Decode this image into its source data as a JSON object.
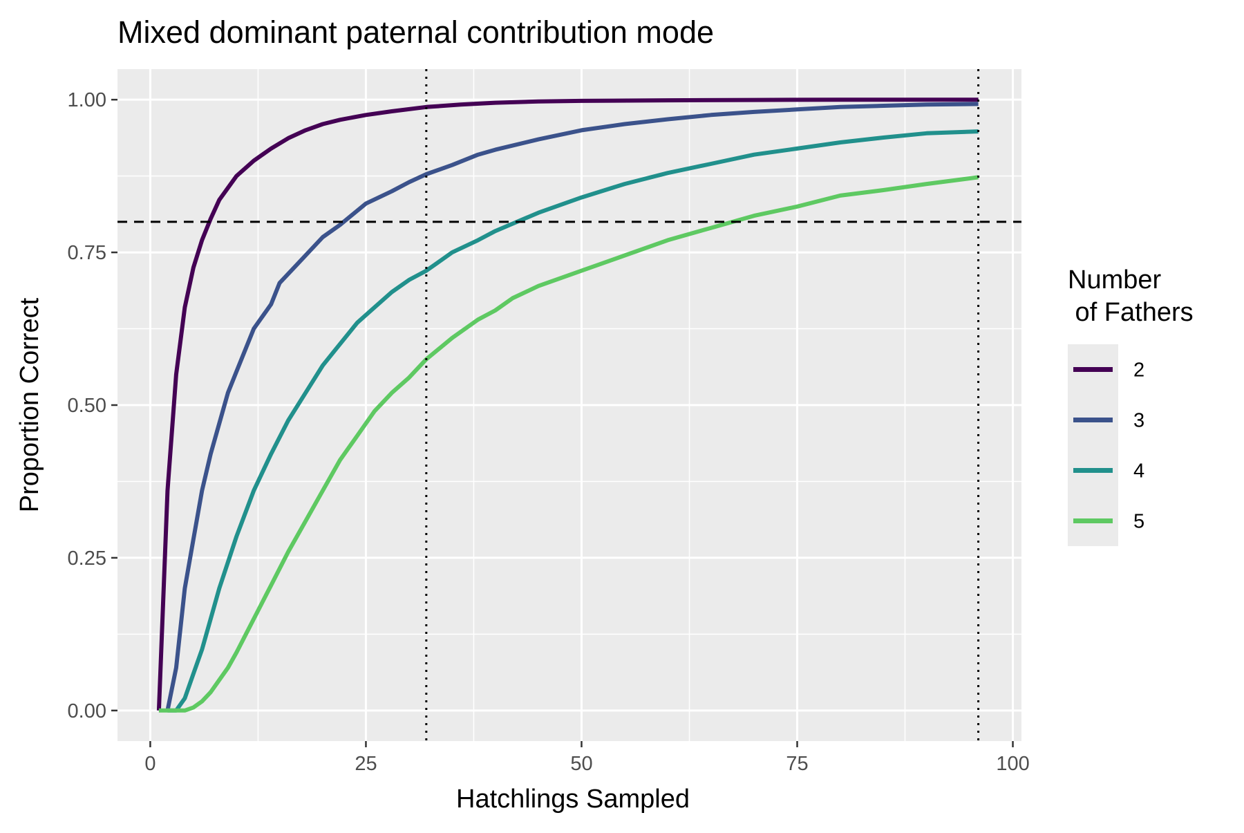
{
  "chart_data": {
    "type": "line",
    "title": "Mixed dominant paternal contribution mode",
    "xlabel": "Hatchlings Sampled",
    "ylabel": "Proportion Correct",
    "xlim": [
      -3.8,
      101
    ],
    "ylim": [
      -0.05,
      1.05
    ],
    "x_ticks": [
      0,
      25,
      50,
      75,
      100
    ],
    "x_tick_labels": [
      "0",
      "25",
      "50",
      "75",
      "100"
    ],
    "y_ticks": [
      0,
      0.25,
      0.5,
      0.75,
      1
    ],
    "y_tick_labels": [
      "0.00",
      "0.25",
      "0.50",
      "0.75",
      "1.00"
    ],
    "grid": true,
    "background": "#ebebeb",
    "legend": {
      "title_lines": [
        "Number",
        " of Fathers"
      ],
      "position": "right"
    },
    "reference_lines": [
      {
        "orientation": "horizontal",
        "value": 0.8,
        "style": "dashed",
        "color": "#000000"
      },
      {
        "orientation": "vertical",
        "value": 32,
        "style": "dotted",
        "color": "#000000"
      },
      {
        "orientation": "vertical",
        "value": 96,
        "style": "dotted",
        "color": "#000000"
      }
    ],
    "series": [
      {
        "name": "2",
        "color": "#440154",
        "points": [
          [
            1,
            0
          ],
          [
            2,
            0.36
          ],
          [
            3,
            0.55
          ],
          [
            4,
            0.66
          ],
          [
            5,
            0.725
          ],
          [
            6,
            0.77
          ],
          [
            7,
            0.805
          ],
          [
            8,
            0.836
          ],
          [
            10,
            0.875
          ],
          [
            12,
            0.9
          ],
          [
            14,
            0.92
          ],
          [
            16,
            0.937
          ],
          [
            18,
            0.95
          ],
          [
            20,
            0.96
          ],
          [
            22,
            0.967
          ],
          [
            25,
            0.975
          ],
          [
            28,
            0.981
          ],
          [
            32,
            0.988
          ],
          [
            36,
            0.992
          ],
          [
            40,
            0.995
          ],
          [
            45,
            0.997
          ],
          [
            50,
            0.998
          ],
          [
            60,
            0.999
          ],
          [
            70,
            0.9995
          ],
          [
            80,
            1.0
          ],
          [
            96,
            1.0
          ]
        ]
      },
      {
        "name": "3",
        "color": "#3b528b",
        "points": [
          [
            2,
            0
          ],
          [
            3,
            0.07
          ],
          [
            4,
            0.2
          ],
          [
            5,
            0.28
          ],
          [
            6,
            0.36
          ],
          [
            7,
            0.42
          ],
          [
            8,
            0.47
          ],
          [
            9,
            0.52
          ],
          [
            10,
            0.555
          ],
          [
            12,
            0.625
          ],
          [
            14,
            0.665
          ],
          [
            15,
            0.7
          ],
          [
            17,
            0.73
          ],
          [
            20,
            0.775
          ],
          [
            22,
            0.795
          ],
          [
            25,
            0.83
          ],
          [
            28,
            0.85
          ],
          [
            30,
            0.865
          ],
          [
            32,
            0.878
          ],
          [
            35,
            0.893
          ],
          [
            38,
            0.91
          ],
          [
            40,
            0.918
          ],
          [
            45,
            0.935
          ],
          [
            50,
            0.95
          ],
          [
            55,
            0.96
          ],
          [
            60,
            0.968
          ],
          [
            65,
            0.975
          ],
          [
            70,
            0.98
          ],
          [
            75,
            0.984
          ],
          [
            80,
            0.988
          ],
          [
            85,
            0.99
          ],
          [
            90,
            0.992
          ],
          [
            96,
            0.993
          ]
        ]
      },
      {
        "name": "4",
        "color": "#21908c",
        "points": [
          [
            2,
            0
          ],
          [
            3,
            0
          ],
          [
            4,
            0.02
          ],
          [
            5,
            0.06
          ],
          [
            6,
            0.1
          ],
          [
            7,
            0.15
          ],
          [
            8,
            0.2
          ],
          [
            10,
            0.285
          ],
          [
            12,
            0.36
          ],
          [
            14,
            0.42
          ],
          [
            16,
            0.475
          ],
          [
            18,
            0.52
          ],
          [
            20,
            0.565
          ],
          [
            22,
            0.6
          ],
          [
            24,
            0.635
          ],
          [
            26,
            0.66
          ],
          [
            28,
            0.685
          ],
          [
            30,
            0.705
          ],
          [
            32,
            0.72
          ],
          [
            35,
            0.75
          ],
          [
            38,
            0.77
          ],
          [
            40,
            0.785
          ],
          [
            45,
            0.815
          ],
          [
            50,
            0.84
          ],
          [
            55,
            0.862
          ],
          [
            60,
            0.88
          ],
          [
            65,
            0.895
          ],
          [
            70,
            0.91
          ],
          [
            75,
            0.92
          ],
          [
            80,
            0.93
          ],
          [
            85,
            0.938
          ],
          [
            90,
            0.945
          ],
          [
            96,
            0.948
          ]
        ]
      },
      {
        "name": "5",
        "color": "#5ec962",
        "points": [
          [
            1,
            0
          ],
          [
            2,
            0
          ],
          [
            3,
            0
          ],
          [
            4,
            0
          ],
          [
            5,
            0.005
          ],
          [
            6,
            0.015
          ],
          [
            7,
            0.03
          ],
          [
            8,
            0.05
          ],
          [
            9,
            0.07
          ],
          [
            10,
            0.095
          ],
          [
            12,
            0.15
          ],
          [
            14,
            0.205
          ],
          [
            16,
            0.26
          ],
          [
            18,
            0.31
          ],
          [
            20,
            0.36
          ],
          [
            22,
            0.41
          ],
          [
            24,
            0.45
          ],
          [
            26,
            0.49
          ],
          [
            28,
            0.52
          ],
          [
            30,
            0.545
          ],
          [
            32,
            0.575
          ],
          [
            35,
            0.61
          ],
          [
            38,
            0.64
          ],
          [
            40,
            0.655
          ],
          [
            42,
            0.675
          ],
          [
            45,
            0.695
          ],
          [
            50,
            0.72
          ],
          [
            55,
            0.745
          ],
          [
            60,
            0.77
          ],
          [
            65,
            0.79
          ],
          [
            70,
            0.81
          ],
          [
            75,
            0.825
          ],
          [
            80,
            0.843
          ],
          [
            85,
            0.852
          ],
          [
            90,
            0.862
          ],
          [
            96,
            0.873
          ]
        ]
      }
    ]
  }
}
